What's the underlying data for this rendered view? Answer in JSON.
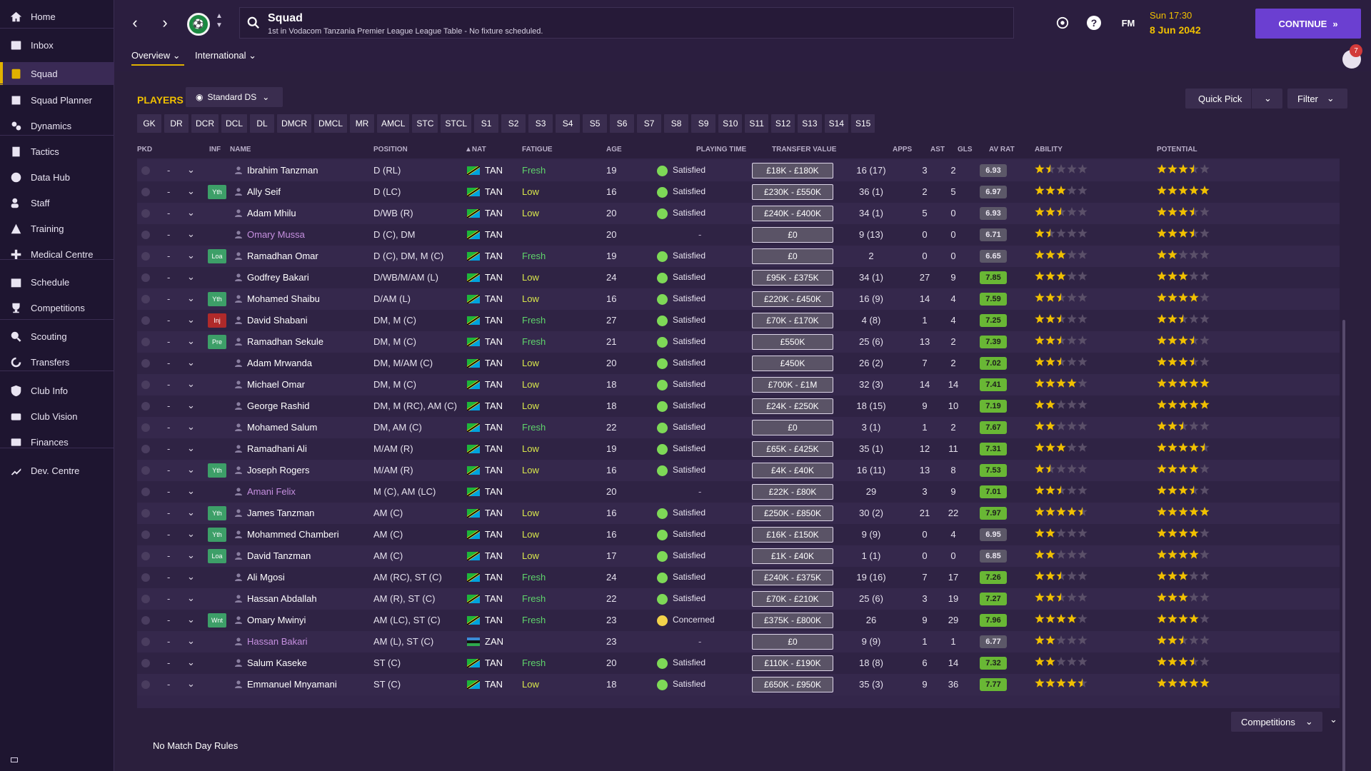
{
  "sidebar": {
    "items": [
      {
        "label": "Home",
        "icon": "home-icon"
      },
      {
        "label": "Inbox",
        "icon": "inbox-icon"
      },
      {
        "label": "Squad",
        "icon": "squad-icon",
        "active": true
      },
      {
        "label": "Squad Planner",
        "icon": "planner-icon"
      },
      {
        "label": "Dynamics",
        "icon": "dynamics-icon"
      },
      {
        "label": "Tactics",
        "icon": "tactics-icon"
      },
      {
        "label": "Data Hub",
        "icon": "data-hub-icon"
      },
      {
        "label": "Staff",
        "icon": "staff-icon"
      },
      {
        "label": "Training",
        "icon": "training-icon"
      },
      {
        "label": "Medical Centre",
        "icon": "medical-icon"
      },
      {
        "label": "Schedule",
        "icon": "calendar-icon"
      },
      {
        "label": "Competitions",
        "icon": "trophy-icon"
      },
      {
        "label": "Scouting",
        "icon": "scouting-icon"
      },
      {
        "label": "Transfers",
        "icon": "transfers-icon"
      },
      {
        "label": "Club Info",
        "icon": "club-info-icon"
      },
      {
        "label": "Club Vision",
        "icon": "club-vision-icon"
      },
      {
        "label": "Finances",
        "icon": "finances-icon"
      },
      {
        "label": "Dev. Centre",
        "icon": "dev-centre-icon"
      }
    ]
  },
  "header": {
    "title": "Squad",
    "subtitle": "1st in Vodacom Tanzania Premier League League Table - No fixture scheduled.",
    "date_time": "Sun 17:30",
    "date": "8 Jun 2042",
    "continue_label": "CONTINUE",
    "fm_label": "FM",
    "notification_count": "7",
    "tabs": [
      {
        "label": "Overview"
      },
      {
        "label": "International"
      }
    ]
  },
  "players_section": {
    "title": "PLAYERS",
    "view_label": "Standard DS",
    "quick_pick_label": "Quick Pick",
    "filter_label": "Filter",
    "position_filters": [
      "GK",
      "DR",
      "DCR",
      "DCL",
      "DL",
      "DMCR",
      "DMCL",
      "MR",
      "AMCL",
      "STC",
      "STCL",
      "S1",
      "S2",
      "S3",
      "S4",
      "S5",
      "S6",
      "S7",
      "S8",
      "S9",
      "S10",
      "S11",
      "S12",
      "S13",
      "S14",
      "S15"
    ]
  },
  "table": {
    "columns": [
      "PKD",
      "INF",
      "NAME",
      "POSITION",
      "NAT",
      "FATIGUE",
      "AGE",
      "PLAYING TIME",
      "TRANSFER VALUE",
      "APPS",
      "AST",
      "GLS",
      "AV RAT",
      "ABILITY",
      "POTENTIAL"
    ],
    "rows": [
      {
        "name": "Ibrahim Tanzman",
        "pos": "D (RL)",
        "nat": "TAN",
        "inf": "",
        "fat": "Fresh",
        "age": "19",
        "pt": "Satisfied",
        "tv": "£18K - £180K",
        "apps": "16 (17)",
        "ast": "3",
        "gls": "2",
        "rat": "6.93",
        "ab": 1.5,
        "po": 3.5
      },
      {
        "name": "Ally Seif",
        "pos": "D (LC)",
        "nat": "TAN",
        "inf": "Yth",
        "fat": "Low",
        "age": "16",
        "pt": "Satisfied",
        "tv": "£230K - £550K",
        "apps": "36 (1)",
        "ast": "2",
        "gls": "5",
        "rat": "6.97",
        "ab": 3,
        "po": 5
      },
      {
        "name": "Adam Mhilu",
        "pos": "D/WB (R)",
        "nat": "TAN",
        "inf": "",
        "fat": "Low",
        "age": "20",
        "pt": "Satisfied",
        "tv": "£240K - £400K",
        "apps": "34 (1)",
        "ast": "5",
        "gls": "0",
        "rat": "6.93",
        "ab": 2.5,
        "po": 3.5
      },
      {
        "name": "Omary Mussa",
        "pos": "D (C), DM",
        "nat": "TAN",
        "inf": "",
        "fat": "",
        "age": "20",
        "pt": "-",
        "tv": "£0",
        "apps": "9 (13)",
        "ast": "0",
        "gls": "0",
        "rat": "6.71",
        "ab": 1.5,
        "po": 3.5,
        "loan": true
      },
      {
        "name": "Ramadhan Omar",
        "pos": "D (C), DM, M (C)",
        "nat": "TAN",
        "inf": "Loa",
        "fat": "Fresh",
        "age": "19",
        "pt": "Satisfied",
        "tv": "£0",
        "apps": "2",
        "ast": "0",
        "gls": "0",
        "rat": "6.65",
        "ab": 3,
        "po": 2
      },
      {
        "name": "Godfrey Bakari",
        "pos": "D/WB/M/AM (L)",
        "nat": "TAN",
        "inf": "",
        "fat": "Low",
        "age": "24",
        "pt": "Satisfied",
        "tv": "£95K - £375K",
        "apps": "34 (1)",
        "ast": "27",
        "gls": "9",
        "rat": "7.85",
        "ab": 3,
        "po": 3
      },
      {
        "name": "Mohamed Shaibu",
        "pos": "D/AM (L)",
        "nat": "TAN",
        "inf": "Yth",
        "fat": "Low",
        "age": "16",
        "pt": "Satisfied",
        "tv": "£220K - £450K",
        "apps": "16 (9)",
        "ast": "14",
        "gls": "4",
        "rat": "7.59",
        "ab": 2.5,
        "po": 4
      },
      {
        "name": "David Shabani",
        "pos": "DM, M (C)",
        "nat": "TAN",
        "inf": "Inj",
        "fat": "Fresh",
        "age": "27",
        "pt": "Satisfied",
        "tv": "£70K - £170K",
        "apps": "4 (8)",
        "ast": "1",
        "gls": "4",
        "rat": "7.25",
        "ab": 2.5,
        "po": 2.5
      },
      {
        "name": "Ramadhan Sekule",
        "pos": "DM, M (C)",
        "nat": "TAN",
        "inf": "Pre",
        "fat": "Fresh",
        "age": "21",
        "pt": "Satisfied",
        "tv": "£550K",
        "apps": "25 (6)",
        "ast": "13",
        "gls": "2",
        "rat": "7.39",
        "ab": 2.5,
        "po": 3.5
      },
      {
        "name": "Adam Mrwanda",
        "pos": "DM, M/AM (C)",
        "nat": "TAN",
        "inf": "",
        "fat": "Low",
        "age": "20",
        "pt": "Satisfied",
        "tv": "£450K",
        "apps": "26 (2)",
        "ast": "7",
        "gls": "2",
        "rat": "7.02",
        "ab": 2.5,
        "po": 3.5
      },
      {
        "name": "Michael Omar",
        "pos": "DM, M (C)",
        "nat": "TAN",
        "inf": "",
        "fat": "Low",
        "age": "18",
        "pt": "Satisfied",
        "tv": "£700K - £1M",
        "apps": "32 (3)",
        "ast": "14",
        "gls": "14",
        "rat": "7.41",
        "ab": 4,
        "po": 5
      },
      {
        "name": "George Rashid",
        "pos": "DM, M (RC), AM (C)",
        "nat": "TAN",
        "inf": "",
        "fat": "Low",
        "age": "18",
        "pt": "Satisfied",
        "tv": "£24K - £250K",
        "apps": "18 (15)",
        "ast": "9",
        "gls": "10",
        "rat": "7.19",
        "ab": 2,
        "po": 5
      },
      {
        "name": "Mohamed Salum",
        "pos": "DM, AM (C)",
        "nat": "TAN",
        "inf": "",
        "fat": "Fresh",
        "age": "22",
        "pt": "Satisfied",
        "tv": "£0",
        "apps": "3 (1)",
        "ast": "1",
        "gls": "2",
        "rat": "7.67",
        "ab": 2,
        "po": 2.5
      },
      {
        "name": "Ramadhani Ali",
        "pos": "M/AM (R)",
        "nat": "TAN",
        "inf": "",
        "fat": "Low",
        "age": "19",
        "pt": "Satisfied",
        "tv": "£65K - £425K",
        "apps": "35 (1)",
        "ast": "12",
        "gls": "11",
        "rat": "7.31",
        "ab": 3,
        "po": 4.5
      },
      {
        "name": "Joseph Rogers",
        "pos": "M/AM (R)",
        "nat": "TAN",
        "inf": "Yth",
        "fat": "Low",
        "age": "16",
        "pt": "Satisfied",
        "tv": "£4K - £40K",
        "apps": "16 (11)",
        "ast": "13",
        "gls": "8",
        "rat": "7.53",
        "ab": 1.5,
        "po": 4
      },
      {
        "name": "Amani Felix",
        "pos": "M (C), AM (LC)",
        "nat": "TAN",
        "inf": "",
        "fat": "",
        "age": "20",
        "pt": "-",
        "tv": "£22K - £80K",
        "apps": "29",
        "ast": "3",
        "gls": "9",
        "rat": "7.01",
        "ab": 2.5,
        "po": 3.5,
        "loan": true
      },
      {
        "name": "James Tanzman",
        "pos": "AM (C)",
        "nat": "TAN",
        "inf": "Yth",
        "fat": "Low",
        "age": "16",
        "pt": "Satisfied",
        "tv": "£250K - £850K",
        "apps": "30 (2)",
        "ast": "21",
        "gls": "22",
        "rat": "7.97",
        "ab": 4.5,
        "po": 5
      },
      {
        "name": "Mohammed Chamberi",
        "pos": "AM (C)",
        "nat": "TAN",
        "inf": "Yth",
        "fat": "Low",
        "age": "16",
        "pt": "Satisfied",
        "tv": "£16K - £150K",
        "apps": "9 (9)",
        "ast": "0",
        "gls": "4",
        "rat": "6.95",
        "ab": 2,
        "po": 4
      },
      {
        "name": "David Tanzman",
        "pos": "AM (C)",
        "nat": "TAN",
        "inf": "Loa",
        "fat": "Low",
        "age": "17",
        "pt": "Satisfied",
        "tv": "£1K - £40K",
        "apps": "1 (1)",
        "ast": "0",
        "gls": "0",
        "rat": "6.85",
        "ab": 2,
        "po": 4
      },
      {
        "name": "Ali Mgosi",
        "pos": "AM (RC), ST (C)",
        "nat": "TAN",
        "inf": "",
        "fat": "Fresh",
        "age": "24",
        "pt": "Satisfied",
        "tv": "£240K - £375K",
        "apps": "19 (16)",
        "ast": "7",
        "gls": "17",
        "rat": "7.26",
        "ab": 2.5,
        "po": 3
      },
      {
        "name": "Hassan Abdallah",
        "pos": "AM (R), ST (C)",
        "nat": "TAN",
        "inf": "",
        "fat": "Fresh",
        "age": "22",
        "pt": "Satisfied",
        "tv": "£70K - £210K",
        "apps": "25 (6)",
        "ast": "3",
        "gls": "19",
        "rat": "7.27",
        "ab": 2.5,
        "po": 3
      },
      {
        "name": "Omary Mwinyi",
        "pos": "AM (LC), ST (C)",
        "nat": "TAN",
        "inf": "Wnt",
        "fat": "Fresh",
        "age": "23",
        "pt": "Concerned",
        "tv": "£375K - £800K",
        "apps": "26",
        "ast": "9",
        "gls": "29",
        "rat": "7.96",
        "ab": 4,
        "po": 4
      },
      {
        "name": "Hassan Bakari",
        "pos": "AM (L), ST (C)",
        "nat": "ZAN",
        "inf": "",
        "fat": "",
        "age": "23",
        "pt": "-",
        "tv": "£0",
        "apps": "9 (9)",
        "ast": "1",
        "gls": "1",
        "rat": "6.77",
        "ab": 2,
        "po": 2.5,
        "loan": true
      },
      {
        "name": "Salum Kaseke",
        "pos": "ST (C)",
        "nat": "TAN",
        "inf": "",
        "fat": "Fresh",
        "age": "20",
        "pt": "Satisfied",
        "tv": "£110K - £190K",
        "apps": "18 (8)",
        "ast": "6",
        "gls": "14",
        "rat": "7.32",
        "ab": 2,
        "po": 3.5
      },
      {
        "name": "Emmanuel Mnyamani",
        "pos": "ST (C)",
        "nat": "TAN",
        "inf": "",
        "fat": "Low",
        "age": "18",
        "pt": "Satisfied",
        "tv": "£650K - £950K",
        "apps": "35 (3)",
        "ast": "9",
        "gls": "36",
        "rat": "7.77",
        "ab": 4.5,
        "po": 5
      }
    ]
  },
  "footer": {
    "match_day_rules": "No Match Day Rules",
    "competitions_label": "Competitions"
  },
  "colors": {
    "accent": "#e1b200",
    "continue": "#6b3fd1",
    "fresh": "#5fd46b",
    "low": "#d9e74b",
    "rating_good": "#69b735"
  }
}
